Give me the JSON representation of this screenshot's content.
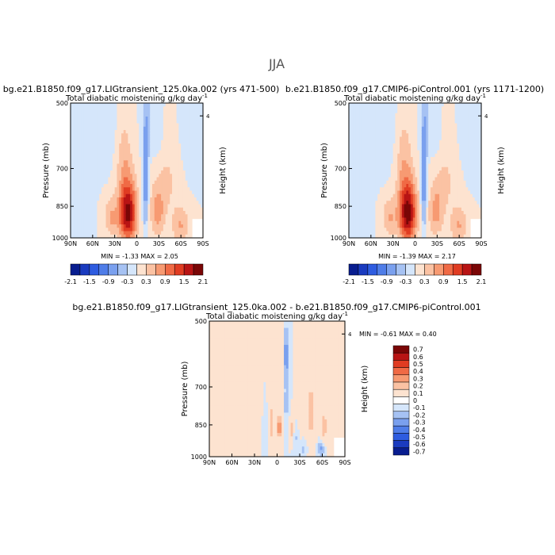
{
  "page_title": "JJA",
  "colors": {
    "blues": [
      "#081d8f",
      "#1a3bbf",
      "#2e5ce0",
      "#4f7de8",
      "#7aa0ee",
      "#a6c2f3",
      "#d5e6fb"
    ],
    "reds": [
      "#fde3d0",
      "#fbc2a3",
      "#f79a72",
      "#f06a45",
      "#e03c22",
      "#b81414",
      "#7a0606"
    ]
  },
  "chart_data": [
    {
      "type": "heatmap",
      "panel": "left",
      "title": "bg.e21.B1850.f09_g17.LIGtransient_125.0ka.002 (yrs 471-500)",
      "subtitle": "Total diabatic moistening",
      "units": "g/kg day",
      "units_exp": "-1",
      "ylabel": "Pressure (mb)",
      "ylabel_right": "Height (km)",
      "x_ticks": [
        "90N",
        "60N",
        "30N",
        "0",
        "30S",
        "60S",
        "90S"
      ],
      "y_ticks": [
        "500",
        "700",
        "850",
        "1000"
      ],
      "right_ticks": [
        "4"
      ],
      "stats": {
        "min_label": "MIN =",
        "min": "-1.33",
        "max_label": "MAX =",
        "max": "2.05"
      },
      "colorbar_labels": [
        "-2.1",
        "-1.5",
        "-0.9",
        "-0.3",
        "0.3",
        "0.9",
        "1.5",
        "2.1"
      ],
      "fields": [
        {
          "lat": -12,
          "p": 760,
          "slat": 4,
          "sp": 200,
          "v": -0.9
        },
        {
          "lat": -14,
          "p": 560,
          "slat": 6,
          "sp": 100,
          "v": -0.4
        },
        {
          "lat": 12,
          "p": 880,
          "slat": 12,
          "sp": 140,
          "v": 1.9
        },
        {
          "lat": -28,
          "p": 880,
          "slat": 10,
          "sp": 110,
          "v": 0.7
        },
        {
          "lat": -60,
          "p": 940,
          "slat": 12,
          "sp": 90,
          "v": 0.6
        },
        {
          "lat": -40,
          "p": 750,
          "slat": 18,
          "sp": 140,
          "v": 0.35
        },
        {
          "lat": 18,
          "p": 650,
          "slat": 12,
          "sp": 150,
          "v": 0.5
        },
        {
          "lat": 35,
          "p": 900,
          "slat": 10,
          "sp": 90,
          "v": 0.6
        },
        {
          "lat": -75,
          "p": 600,
          "slat": 14,
          "sp": 120,
          "v": -0.2
        },
        {
          "lat": -28,
          "p": 600,
          "slat": 8,
          "sp": 90,
          "v": -0.2
        },
        {
          "lat": 45,
          "p": 580,
          "slat": 30,
          "sp": 130,
          "v": -0.25
        },
        {
          "lat": 75,
          "p": 780,
          "slat": 12,
          "sp": 200,
          "v": -0.2
        }
      ]
    },
    {
      "type": "heatmap",
      "panel": "right",
      "title": "b.e21.B1850.f09_g17.CMIP6-piControl.001 (yrs 1171-1200)",
      "subtitle": "Total diabatic moistening",
      "units": "g/kg day",
      "units_exp": "-1",
      "ylabel": "Pressure (mb)",
      "ylabel_right": "Height (km)",
      "x_ticks": [
        "90N",
        "60N",
        "30N",
        "0",
        "30S",
        "60S",
        "90S"
      ],
      "y_ticks": [
        "500",
        "700",
        "850",
        "1000"
      ],
      "right_ticks": [
        "4"
      ],
      "stats": {
        "min_label": "MIN =",
        "min": "-1.39",
        "max_label": "MAX =",
        "max": "2.17"
      },
      "colorbar_labels": [
        "-2.1",
        "-1.5",
        "-0.9",
        "-0.3",
        "0.3",
        "0.9",
        "1.5",
        "2.1"
      ],
      "fields": [
        {
          "lat": -12,
          "p": 760,
          "slat": 4,
          "sp": 200,
          "v": -0.95
        },
        {
          "lat": -14,
          "p": 560,
          "slat": 6,
          "sp": 100,
          "v": -0.4
        },
        {
          "lat": 10,
          "p": 880,
          "slat": 12,
          "sp": 140,
          "v": 2.0
        },
        {
          "lat": -28,
          "p": 880,
          "slat": 10,
          "sp": 110,
          "v": 0.65
        },
        {
          "lat": -60,
          "p": 940,
          "slat": 12,
          "sp": 90,
          "v": 0.6
        },
        {
          "lat": -40,
          "p": 750,
          "slat": 18,
          "sp": 140,
          "v": 0.35
        },
        {
          "lat": 16,
          "p": 650,
          "slat": 12,
          "sp": 150,
          "v": 0.5
        },
        {
          "lat": 35,
          "p": 900,
          "slat": 10,
          "sp": 90,
          "v": 0.6
        },
        {
          "lat": -75,
          "p": 600,
          "slat": 14,
          "sp": 120,
          "v": -0.2
        },
        {
          "lat": -28,
          "p": 600,
          "slat": 8,
          "sp": 90,
          "v": -0.2
        },
        {
          "lat": 45,
          "p": 580,
          "slat": 30,
          "sp": 130,
          "v": -0.25
        },
        {
          "lat": 75,
          "p": 780,
          "slat": 12,
          "sp": 200,
          "v": -0.2
        }
      ]
    },
    {
      "type": "heatmap",
      "panel": "bottom",
      "title": "bg.e21.B1850.f09_g17.LIGtransient_125.0ka.002 - b.e21.B1850.f09_g17.CMIP6-piControl.001",
      "subtitle": "Total diabatic moistening",
      "units": "g/kg day",
      "units_exp": "-1",
      "ylabel": "Pressure (mb)",
      "ylabel_right": "Height (km)",
      "x_ticks": [
        "90N",
        "60N",
        "30N",
        "0",
        "30S",
        "60S",
        "90S"
      ],
      "y_ticks": [
        "500",
        "700",
        "850",
        "1000"
      ],
      "right_ticks": [
        "4"
      ],
      "stats": {
        "min_label": "MIN =",
        "min": "-0.61",
        "max_label": "MAX =",
        "max": "0.40"
      },
      "colorbar_labels": [
        "0.7",
        "0.6",
        "0.5",
        "0.4",
        "0.3",
        "0.2",
        "0.1",
        "0",
        "-0.1",
        "-0.2",
        "-0.3",
        "-0.4",
        "-0.5",
        "-0.6",
        "-0.7"
      ],
      "fields": [
        {
          "lat": -12,
          "p": 600,
          "slat": 3,
          "sp": 90,
          "v": -0.3
        },
        {
          "lat": -12,
          "p": 770,
          "slat": 3,
          "sp": 70,
          "v": -0.15
        },
        {
          "lat": -3,
          "p": 860,
          "slat": 3,
          "sp": 50,
          "v": 0.3
        },
        {
          "lat": -58,
          "p": 960,
          "slat": 5,
          "sp": 35,
          "v": -0.25
        },
        {
          "lat": -35,
          "p": 960,
          "slat": 6,
          "sp": 40,
          "v": -0.15
        },
        {
          "lat": -20,
          "p": 870,
          "slat": 3,
          "sp": 50,
          "v": 0.18
        },
        {
          "lat": 8,
          "p": 840,
          "slat": 3,
          "sp": 70,
          "v": 0.2
        },
        {
          "lat": 15,
          "p": 880,
          "slat": 3,
          "sp": 60,
          "v": -0.12
        },
        {
          "lat": 25,
          "p": 820,
          "slat": 3,
          "sp": 80,
          "v": 0.1
        },
        {
          "lat": -45,
          "p": 800,
          "slat": 8,
          "sp": 200,
          "v": 0.12
        },
        {
          "lat": -70,
          "p": 780,
          "slat": 6,
          "sp": 200,
          "v": 0.08
        },
        {
          "lat": -30,
          "p": 720,
          "slat": 4,
          "sp": 200,
          "v": 0.1
        },
        {
          "lat": -25,
          "p": 900,
          "slat": 4,
          "sp": 60,
          "v": -0.12
        },
        {
          "lat": -62,
          "p": 860,
          "slat": 4,
          "sp": 80,
          "v": 0.12
        },
        {
          "lat": 40,
          "p": 620,
          "slat": 6,
          "sp": 120,
          "v": 0.08
        },
        {
          "lat": -5,
          "p": 650,
          "slat": 4,
          "sp": 120,
          "v": 0.08
        }
      ]
    }
  ]
}
